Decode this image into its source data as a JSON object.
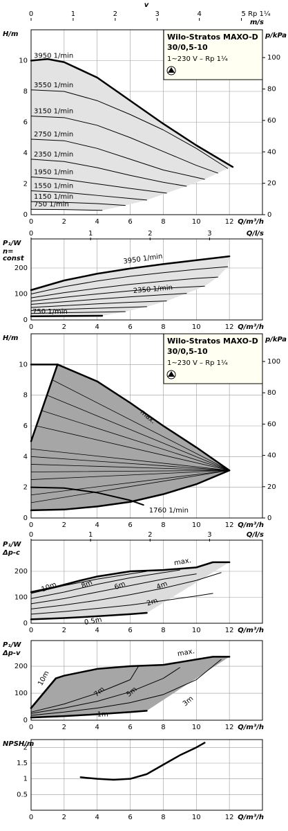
{
  "chart_data": [
    {
      "type": "line",
      "ylabel": "H/m",
      "y2label": "p/kPa",
      "xlabel": "Q/m³/h",
      "x2label": "v",
      "x2unit": "m/s",
      "x2lim": [
        0,
        5.5
      ],
      "x2ticks": [
        0,
        1,
        2,
        3,
        4,
        {
          "value": 5,
          "label": "5 Rp 1¼"
        }
      ],
      "xlim": [
        0,
        14
      ],
      "ylim": [
        0,
        12
      ],
      "xticks": [
        0,
        2,
        4,
        6,
        8,
        10,
        12
      ],
      "yticks": [
        0,
        2,
        4,
        6,
        8,
        10
      ],
      "y2lim": [
        0,
        117.7
      ],
      "y2ticks": [
        0,
        20,
        40,
        60,
        80,
        100
      ],
      "grid": true,
      "area_color": "#e3e3e3",
      "product": {
        "name": "Wilo-Stratos MAXO-D",
        "model": "30/0,5-10",
        "supply": "1~230 V – Rp 1¼"
      },
      "series": [
        {
          "name": "3950 1/min",
          "color": "#000000",
          "line_width": 2.5,
          "x": [
            0,
            1,
            2,
            4,
            6,
            8,
            10,
            12.2
          ],
          "values": [
            10.0,
            10.1,
            9.9,
            8.9,
            7.4,
            5.9,
            4.5,
            3.1
          ]
        },
        {
          "name": "3550 1/min",
          "color": "#000000",
          "line_width": 1,
          "x": [
            0,
            2,
            4,
            6,
            8,
            10,
            11.9
          ],
          "values": [
            8.1,
            8.0,
            7.4,
            6.5,
            5.5,
            4.3,
            3.0
          ]
        },
        {
          "name": "3150 1/min",
          "color": "#000000",
          "line_width": 1,
          "x": [
            0,
            2,
            4,
            6,
            8,
            10,
            11.3
          ],
          "values": [
            6.4,
            6.3,
            5.8,
            5.0,
            4.1,
            3.2,
            2.7
          ]
        },
        {
          "name": "2750 1/min",
          "color": "#000000",
          "line_width": 1,
          "x": [
            0,
            2,
            4,
            6,
            8,
            10.5
          ],
          "values": [
            4.9,
            4.8,
            4.3,
            3.6,
            2.9,
            2.3
          ]
        },
        {
          "name": "2350 1/min",
          "color": "#000000",
          "line_width": 1,
          "x": [
            0,
            2,
            4,
            6,
            8,
            9.4
          ],
          "values": [
            3.6,
            3.45,
            3.05,
            2.55,
            2.1,
            1.85
          ]
        },
        {
          "name": "1950 1/min",
          "color": "#000000",
          "line_width": 1,
          "x": [
            0,
            2,
            4,
            6,
            8.2
          ],
          "values": [
            2.45,
            2.3,
            2.0,
            1.7,
            1.4
          ]
        },
        {
          "name": "1550 1/min",
          "color": "#000000",
          "line_width": 1,
          "x": [
            0,
            2,
            4,
            6,
            7
          ],
          "values": [
            1.55,
            1.45,
            1.25,
            1.05,
            0.95
          ]
        },
        {
          "name": "1150 1/min",
          "color": "#000000",
          "line_width": 1,
          "x": [
            0,
            2,
            4,
            5.7
          ],
          "values": [
            0.85,
            0.8,
            0.72,
            0.6
          ]
        },
        {
          "name": "750 1/min",
          "color": "#000000",
          "line_width": 1,
          "x": [
            0,
            2,
            4.3
          ],
          "values": [
            0.35,
            0.33,
            0.28
          ]
        }
      ]
    },
    {
      "type": "line",
      "ylabel": "P₁/W",
      "ylabel_note": [
        "n=",
        "const"
      ],
      "xlabel": "Q/m³/h",
      "x2label": "Q/l/s",
      "x2lim": [
        0,
        3.889
      ],
      "x2ticks": [
        0,
        1,
        2,
        3
      ],
      "xlim": [
        0,
        14
      ],
      "ylim": [
        0,
        312
      ],
      "xticks": [
        0,
        2,
        4,
        6,
        8,
        10,
        12
      ],
      "yticks": [
        0,
        100,
        200
      ],
      "grid": true,
      "area_color": "#e3e3e3",
      "series": [
        {
          "name": "3950 1/min",
          "color": "#000000",
          "line_width": 2.5,
          "x": [
            0,
            2,
            4,
            6,
            8,
            10,
            12
          ],
          "values": [
            115,
            152,
            178,
            198,
            215,
            230,
            245
          ]
        },
        {
          "color": "#000000",
          "line_width": 1,
          "x": [
            0,
            2,
            4,
            6,
            8,
            10,
            11.9
          ],
          "values": [
            100,
            128,
            150,
            168,
            182,
            195,
            205
          ]
        },
        {
          "color": "#000000",
          "line_width": 1,
          "x": [
            0,
            2,
            4,
            6,
            8,
            10,
            11.3
          ],
          "values": [
            85,
            105,
            122,
            137,
            149,
            160,
            165
          ]
        },
        {
          "color": "#000000",
          "line_width": 1,
          "x": [
            0,
            2,
            4,
            6,
            8,
            10.5
          ],
          "values": [
            72,
            87,
            100,
            112,
            122,
            130
          ]
        },
        {
          "name": "2350 1/min",
          "color": "#000000",
          "line_width": 1,
          "x": [
            0,
            2,
            4,
            6,
            8,
            9.4
          ],
          "values": [
            60,
            70,
            80,
            89,
            97,
            102
          ]
        },
        {
          "color": "#000000",
          "line_width": 1,
          "x": [
            0,
            2,
            4,
            6,
            8.2
          ],
          "values": [
            48,
            55,
            62,
            68,
            73
          ]
        },
        {
          "color": "#000000",
          "line_width": 1,
          "x": [
            0,
            2,
            4,
            6,
            7
          ],
          "values": [
            36,
            41,
            45,
            49,
            51
          ]
        },
        {
          "color": "#000000",
          "line_width": 1,
          "x": [
            0,
            2,
            4,
            5.7
          ],
          "values": [
            25,
            28,
            30,
            32
          ]
        },
        {
          "name": "750 1/min",
          "color": "#000000",
          "line_width": 2.5,
          "x": [
            0,
            2,
            4.3
          ],
          "values": [
            14,
            15,
            16
          ]
        }
      ]
    },
    {
      "type": "line",
      "ylabel": "H/m",
      "y2label": "p/kPa",
      "xlabel": "Q/m³/h",
      "xlim": [
        0,
        14
      ],
      "ylim": [
        0,
        12
      ],
      "xticks": [
        0,
        2,
        4,
        6,
        8,
        10,
        12
      ],
      "yticks": [
        0,
        2,
        4,
        6,
        8,
        10
      ],
      "y2lim": [
        0,
        117.7
      ],
      "y2ticks": [
        0,
        20,
        40,
        60,
        80,
        100
      ],
      "grid": true,
      "area_color": "#a6a6a6",
      "product": {
        "name": "Wilo-Stratos MAXO-D",
        "model": "30/0,5-10",
        "supply": "1~230 V – Rp 1¼"
      },
      "series": [
        {
          "name": "max.",
          "color": "#000000",
          "line_width": 2.5,
          "x": [
            0,
            1.6,
            4,
            6,
            8,
            10,
            12
          ],
          "values": [
            10,
            10,
            8.9,
            7.5,
            6.0,
            4.6,
            3.1
          ]
        },
        {
          "color": "#000000",
          "line_width": 2.5,
          "x": [
            0,
            1.6
          ],
          "values": [
            5,
            10
          ]
        },
        {
          "color": "#000000",
          "line_width": 2.5,
          "x": [
            0,
            2,
            4,
            6,
            8,
            10,
            12
          ],
          "values": [
            0.5,
            0.55,
            0.75,
            1.05,
            1.55,
            2.2,
            3.1
          ]
        },
        {
          "name": "1760 1/min",
          "color": "#000000",
          "line_width": 2,
          "x": [
            0,
            2,
            4,
            6,
            6.8
          ],
          "values": [
            2.0,
            1.95,
            1.65,
            1.15,
            0.85
          ]
        },
        {
          "color": "#000000",
          "line_width": 0.8,
          "x": [
            0,
            12
          ],
          "values": [
            1,
            3.1
          ]
        },
        {
          "color": "#000000",
          "line_width": 0.8,
          "x": [
            0,
            12
          ],
          "values": [
            1.5,
            3.1
          ]
        },
        {
          "color": "#000000",
          "line_width": 0.8,
          "x": [
            0,
            12
          ],
          "values": [
            2.5,
            3.1
          ]
        },
        {
          "color": "#000000",
          "line_width": 0.8,
          "x": [
            0,
            12
          ],
          "values": [
            3,
            3.1
          ]
        },
        {
          "color": "#000000",
          "line_width": 0.8,
          "x": [
            0,
            12
          ],
          "values": [
            3.5,
            3.1
          ]
        },
        {
          "color": "#000000",
          "line_width": 0.8,
          "x": [
            0,
            12
          ],
          "values": [
            4,
            3.1
          ]
        },
        {
          "color": "#000000",
          "line_width": 0.8,
          "x": [
            0,
            12
          ],
          "values": [
            4.5,
            3.1
          ]
        },
        {
          "color": "#000000",
          "line_width": 0.8,
          "x": [
            0.32,
            12
          ],
          "values": [
            6,
            3.1
          ]
        },
        {
          "color": "#000000",
          "line_width": 0.8,
          "x": [
            0.64,
            12
          ],
          "values": [
            7,
            3.1
          ]
        },
        {
          "color": "#000000",
          "line_width": 0.8,
          "x": [
            0.96,
            12
          ],
          "values": [
            8,
            3.1
          ]
        },
        {
          "color": "#000000",
          "line_width": 0.8,
          "x": [
            1.28,
            12
          ],
          "values": [
            9,
            3.1
          ]
        }
      ]
    },
    {
      "type": "line",
      "ylabel": "P₁/W",
      "ylabel_note": [
        "Δp-c"
      ],
      "xlabel": "Q/m³/h",
      "x2label": "Q/l/s",
      "x2lim": [
        0,
        3.889
      ],
      "x2ticks": [
        0,
        1,
        2,
        3
      ],
      "xlim": [
        0,
        14
      ],
      "ylim": [
        0,
        320
      ],
      "xticks": [
        0,
        2,
        4,
        6,
        8,
        10,
        12
      ],
      "yticks": [
        0,
        100,
        200
      ],
      "grid": true,
      "area_color": "#dcdcdc",
      "series": [
        {
          "name": "max.",
          "color": "#000000",
          "line_width": 2.5,
          "x": [
            0,
            1.5,
            3,
            4,
            6,
            8,
            10,
            11,
            12
          ],
          "values": [
            120,
            140,
            165,
            180,
            200,
            205,
            215,
            235,
            235
          ]
        },
        {
          "name": "10m",
          "color": "#000000",
          "line_width": 1,
          "x": [
            0,
            2,
            4,
            6,
            7
          ],
          "values": [
            115,
            145,
            170,
            190,
            200
          ]
        },
        {
          "name": "8m",
          "color": "#000000",
          "line_width": 1,
          "x": [
            0,
            2,
            4,
            6,
            8,
            9
          ],
          "values": [
            95,
            120,
            150,
            175,
            195,
            205
          ]
        },
        {
          "name": "6m",
          "color": "#000000",
          "line_width": 1,
          "x": [
            0,
            2,
            4,
            6,
            8,
            10
          ],
          "values": [
            75,
            95,
            120,
            145,
            170,
            190
          ]
        },
        {
          "name": "4m",
          "color": "#000000",
          "line_width": 1,
          "x": [
            0,
            2,
            4,
            6,
            8,
            10,
            11.5
          ],
          "values": [
            55,
            70,
            88,
            110,
            135,
            165,
            195
          ]
        },
        {
          "name": "2m",
          "color": "#000000",
          "line_width": 1,
          "x": [
            0,
            2,
            4,
            6,
            8,
            10,
            11
          ],
          "values": [
            35,
            45,
            57,
            70,
            87,
            105,
            115
          ]
        },
        {
          "name": "0.5m",
          "color": "#000000",
          "line_width": 2.5,
          "x": [
            0,
            2,
            4,
            6,
            7
          ],
          "values": [
            15,
            20,
            27,
            35,
            40
          ]
        }
      ]
    },
    {
      "type": "line",
      "ylabel": "P₁/W",
      "ylabel_note": [
        "Δp-v"
      ],
      "xlabel": "Q/m³/h",
      "xlim": [
        0,
        14
      ],
      "ylim": [
        0,
        295
      ],
      "xticks": [
        0,
        2,
        4,
        6,
        8,
        10,
        12
      ],
      "yticks": [
        0,
        100,
        200
      ],
      "grid": true,
      "area_color": "#a6a6a6",
      "series": [
        {
          "name": "max.",
          "color": "#000000",
          "line_width": 2.5,
          "x": [
            0,
            1.5,
            2,
            4,
            6,
            8,
            10,
            11,
            12
          ],
          "values": [
            45,
            155,
            165,
            190,
            200,
            205,
            225,
            235,
            235
          ]
        },
        {
          "name": "10m",
          "color": "#000000",
          "line_width": 2.5,
          "x": [
            0,
            1.5
          ],
          "values": [
            45,
            155
          ]
        },
        {
          "name": "7m",
          "color": "#000000",
          "line_width": 1,
          "x": [
            0,
            2,
            4,
            6,
            6.5
          ],
          "values": [
            30,
            60,
            100,
            150,
            200
          ]
        },
        {
          "name": "5m",
          "color": "#000000",
          "line_width": 1,
          "x": [
            0,
            2,
            4,
            6,
            8,
            9
          ],
          "values": [
            25,
            45,
            70,
            105,
            155,
            195
          ]
        },
        {
          "name": "3m",
          "color": "#000000",
          "line_width": 1,
          "x": [
            0,
            2,
            4,
            6,
            8,
            10,
            11.5
          ],
          "values": [
            18,
            30,
            45,
            65,
            95,
            150,
            225
          ]
        },
        {
          "name": "1m",
          "color": "#000000",
          "line_width": 2.5,
          "x": [
            0,
            2,
            4,
            6,
            7
          ],
          "values": [
            10,
            15,
            22,
            30,
            35
          ]
        }
      ]
    },
    {
      "type": "line",
      "ylabel": "NPSH/m",
      "xlabel": "Q/m³/h",
      "xlim": [
        0,
        14
      ],
      "ylim": [
        0,
        2.25
      ],
      "xticks": [
        0,
        2,
        4,
        6,
        8,
        10,
        12
      ],
      "yticks": [
        0.5,
        1,
        1.5,
        2
      ],
      "grid": true,
      "series": [
        {
          "color": "#000000",
          "line_width": 2.5,
          "x": [
            3,
            4,
            5,
            6,
            7,
            8,
            9,
            10,
            10.5
          ],
          "values": [
            1.05,
            1.0,
            0.97,
            1.0,
            1.15,
            1.45,
            1.75,
            2.0,
            2.15
          ]
        }
      ]
    }
  ]
}
